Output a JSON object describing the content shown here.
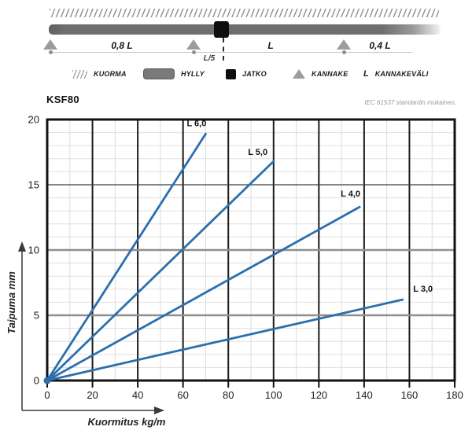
{
  "diagram": {
    "spans": {
      "left": "0,8 L",
      "joint_offset": "L/5",
      "middle": "L",
      "right": "0,4 L"
    },
    "legend": [
      {
        "label": "KUORMA",
        "icon": "hatch-icon"
      },
      {
        "label": "HYLLY",
        "icon": "beam-icon"
      },
      {
        "label": "JATKO",
        "icon": "joint-icon"
      },
      {
        "label": "KANNAKE",
        "icon": "triangle-icon"
      },
      {
        "label": "KANNAKEVÄLI",
        "icon": "letter-L",
        "symbol": "L"
      }
    ]
  },
  "chart": {
    "title": "KSF80",
    "note": "IEC 61537 standardin mukainen.",
    "xlabel": "Kuormitus kg/m",
    "ylabel": "Taipuma mm"
  },
  "chart_data": {
    "type": "line",
    "title": "KSF80",
    "xlabel": "Kuormitus kg/m",
    "ylabel": "Taipuma mm",
    "xlim": [
      0,
      180
    ],
    "ylim": [
      0,
      20
    ],
    "x_ticks": [
      0,
      20,
      40,
      60,
      80,
      100,
      120,
      140,
      160,
      180
    ],
    "y_ticks": [
      0,
      5,
      10,
      15,
      20
    ],
    "grid": {
      "minor_x_step": 10,
      "minor_y_step": 1,
      "major_x_step": 20,
      "major_y_step": 5
    },
    "line_color": "#2b6fad",
    "series": [
      {
        "name": "L 6,0",
        "points": [
          [
            0,
            0
          ],
          [
            70,
            18.9
          ]
        ],
        "label_at": [
          66,
          19.5
        ]
      },
      {
        "name": "L 5,0",
        "points": [
          [
            0,
            0
          ],
          [
            100,
            16.8
          ]
        ],
        "label_at": [
          93,
          17.3
        ]
      },
      {
        "name": "L 4,0",
        "points": [
          [
            0,
            0
          ],
          [
            138,
            13.3
          ]
        ],
        "label_at": [
          134,
          14.1
        ]
      },
      {
        "name": "L 3,0",
        "points": [
          [
            0,
            0
          ],
          [
            157,
            6.2
          ]
        ],
        "label_at": [
          166,
          6.8
        ]
      }
    ]
  }
}
